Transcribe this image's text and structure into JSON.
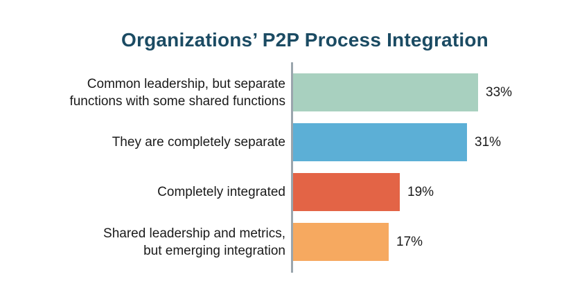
{
  "chart_data": {
    "type": "bar",
    "orientation": "horizontal",
    "title": "Organizations’ P2P Process Integration",
    "xlabel": "",
    "ylabel": "",
    "grid": false,
    "legend": null,
    "categories": [
      "Common leadership, but separate functions with some shared functions",
      "They are completely separate",
      "Completely integrated",
      "Shared leadership and metrics, but emerging integration"
    ],
    "category_lines": [
      [
        "Common leadership, but separate",
        "functions with some shared functions"
      ],
      [
        "They are completely separate"
      ],
      [
        "Completely integrated"
      ],
      [
        "Shared leadership and metrics,",
        "but emerging integration"
      ]
    ],
    "values": [
      33,
      31,
      19,
      17
    ],
    "value_labels": [
      "33%",
      "31%",
      "19%",
      "17%"
    ],
    "unit": "%",
    "colors": [
      "#a8d0bf",
      "#5cafd6",
      "#e36446",
      "#f6a960"
    ]
  },
  "colors": {
    "title": "#1b4b63",
    "axis": "#9aa5ad",
    "text": "#1a1a1a"
  }
}
